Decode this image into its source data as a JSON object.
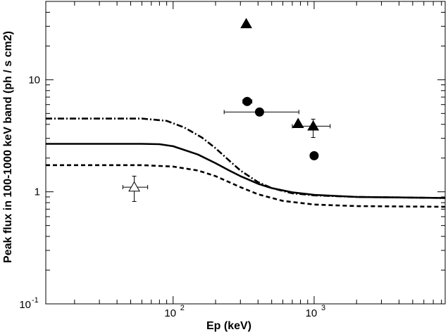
{
  "chart_data": {
    "type": "scatter",
    "title": "",
    "xlabel": "Ep (keV)",
    "ylabel": "Peak flux in 100-1000 keV band (ph / s cm2)",
    "xscale": "log",
    "yscale": "log",
    "xlim": [
      12.5,
      8500
    ],
    "ylim": [
      0.1,
      50
    ],
    "grid": false,
    "legend": "none",
    "colors": {
      "axis": "#000000",
      "marks": "#000000",
      "background": "#ffffff"
    },
    "x_tick_labels": [
      {
        "value": 100,
        "base": "10",
        "exp": "2"
      },
      {
        "value": 1000,
        "base": "10",
        "exp": "3"
      }
    ],
    "y_tick_labels": [
      {
        "value": 0.1,
        "label": "10-1",
        "base": "10",
        "exp": "-1"
      },
      {
        "value": 1,
        "label": "1"
      },
      {
        "value": 10,
        "label": "10"
      }
    ],
    "curves": [
      {
        "style": "dash-dot",
        "x": [
          12.5,
          30,
          60,
          90,
          120,
          160,
          200,
          250,
          300,
          400,
          500,
          700,
          1000,
          2000,
          4000,
          8500
        ],
        "y": [
          4.5,
          4.5,
          4.5,
          4.3,
          3.75,
          3.05,
          2.45,
          1.9,
          1.55,
          1.22,
          1.08,
          0.97,
          0.93,
          0.9,
          0.89,
          0.88
        ]
      },
      {
        "style": "solid",
        "x": [
          12.5,
          30,
          60,
          80,
          100,
          150,
          200,
          250,
          300,
          400,
          500,
          700,
          1000,
          2000,
          4000,
          8500
        ],
        "y": [
          2.68,
          2.68,
          2.68,
          2.66,
          2.55,
          2.15,
          1.8,
          1.55,
          1.38,
          1.18,
          1.08,
          0.99,
          0.94,
          0.9,
          0.89,
          0.88
        ]
      },
      {
        "style": "dashed",
        "x": [
          12.5,
          30,
          60,
          100,
          150,
          200,
          300,
          400,
          600,
          1000,
          2000,
          4000,
          8500
        ],
        "y": [
          1.73,
          1.73,
          1.73,
          1.68,
          1.55,
          1.38,
          1.1,
          0.95,
          0.83,
          0.77,
          0.745,
          0.74,
          0.735
        ]
      }
    ],
    "points": [
      {
        "marker": "triangle-filled",
        "x": 330,
        "y": 31.5
      },
      {
        "marker": "circle-filled",
        "x": 335,
        "y": 6.4,
        "xerr": [
          312,
          362
        ]
      },
      {
        "marker": "circle-filled",
        "x": 410,
        "y": 5.15,
        "xerr": [
          230,
          780
        ]
      },
      {
        "marker": "triangle-filled",
        "x": 770,
        "y": 4.05
      },
      {
        "marker": "triangle-filled",
        "x": 985,
        "y": 3.85,
        "xerr": [
          700,
          1300
        ],
        "yerr": [
          3.05,
          4.45
        ]
      },
      {
        "marker": "circle-filled",
        "x": 1000,
        "y": 2.1
      },
      {
        "marker": "triangle-open",
        "x": 53,
        "y": 1.1,
        "xerr": [
          44,
          66
        ],
        "yerr": [
          0.82,
          1.38
        ]
      }
    ]
  }
}
